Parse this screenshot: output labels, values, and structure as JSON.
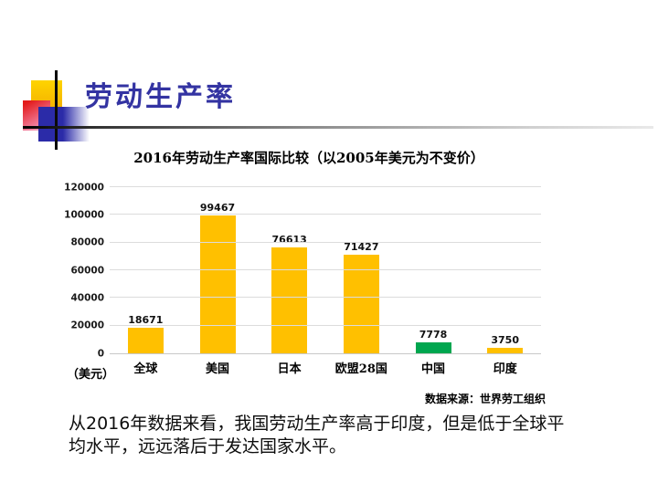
{
  "slide": {
    "title": "劳动生产率",
    "footer_text": "从2016年数据来看，我国劳动生产率高于印度，但是低于全球平均水平，远远落后于发达国家水平。"
  },
  "chart_data": {
    "type": "bar",
    "title": "2016年劳动生产率国际比较（以2005年美元为不变价）",
    "categories": [
      "全球",
      "美国",
      "日本",
      "欧盟28国",
      "中国",
      "印度"
    ],
    "values": [
      18671,
      99467,
      76613,
      71427,
      7778,
      3750
    ],
    "bar_colors": [
      "#FFC000",
      "#FFC000",
      "#FFC000",
      "#FFC000",
      "#00A64F",
      "#FFC000"
    ],
    "unit_label": "（美元）",
    "source": "数据来源：世界劳工组织",
    "ylabel": "",
    "xlabel": "",
    "ylim": [
      0,
      120000
    ],
    "yticks": [
      0,
      20000,
      40000,
      60000,
      80000,
      100000,
      120000
    ],
    "grid": true,
    "legend_position": "none"
  }
}
